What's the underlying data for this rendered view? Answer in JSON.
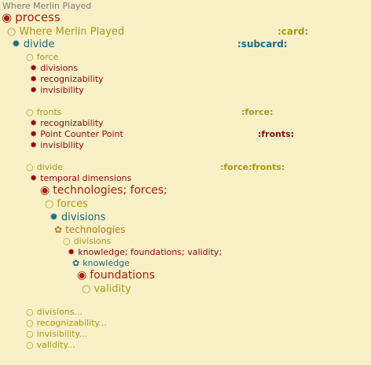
{
  "header": {
    "title": "Where Merlin Played"
  },
  "outline": {
    "process": "process",
    "card_item": "Where Merlin Played",
    "card_tag": ":card:",
    "divide1": "divide",
    "subcard_tag": ":subcard:",
    "force": "force",
    "force_children": [
      "divisions",
      "recognizability",
      "invisibility"
    ],
    "fronts": "fronts",
    "force_tag": ":force:",
    "fronts_children": [
      "recognizability",
      "Point Counter Point",
      "invisibility"
    ],
    "fronts_tag": ":fronts:",
    "divide2": "divide",
    "force_fronts_tag": ":force:fronts:",
    "temporal": "temporal dimensions",
    "tech_forces": "technologies; forces;",
    "forces": "forces",
    "divisions1": "divisions",
    "technologies": "technologies",
    "divisions2": "divisions",
    "knowledge_line": "knowledge; foundations; validity;",
    "knowledge": "knowledge",
    "foundations": "foundations",
    "validity": "validity",
    "collapsed": [
      "divisions...",
      "recognizability...",
      "invisibility...",
      "validity..."
    ]
  },
  "bullets": {
    "circle_dot": "◉",
    "circle": "○",
    "star": "✹",
    "flower": "✿"
  },
  "colors": {
    "background": "#faf0c8",
    "gray": "#7a7a7a",
    "red": "#a0250e",
    "dark_red": "#8a0a0a",
    "olive": "#a89a18",
    "teal": "#1d6b7c",
    "orange": "#b87818"
  }
}
